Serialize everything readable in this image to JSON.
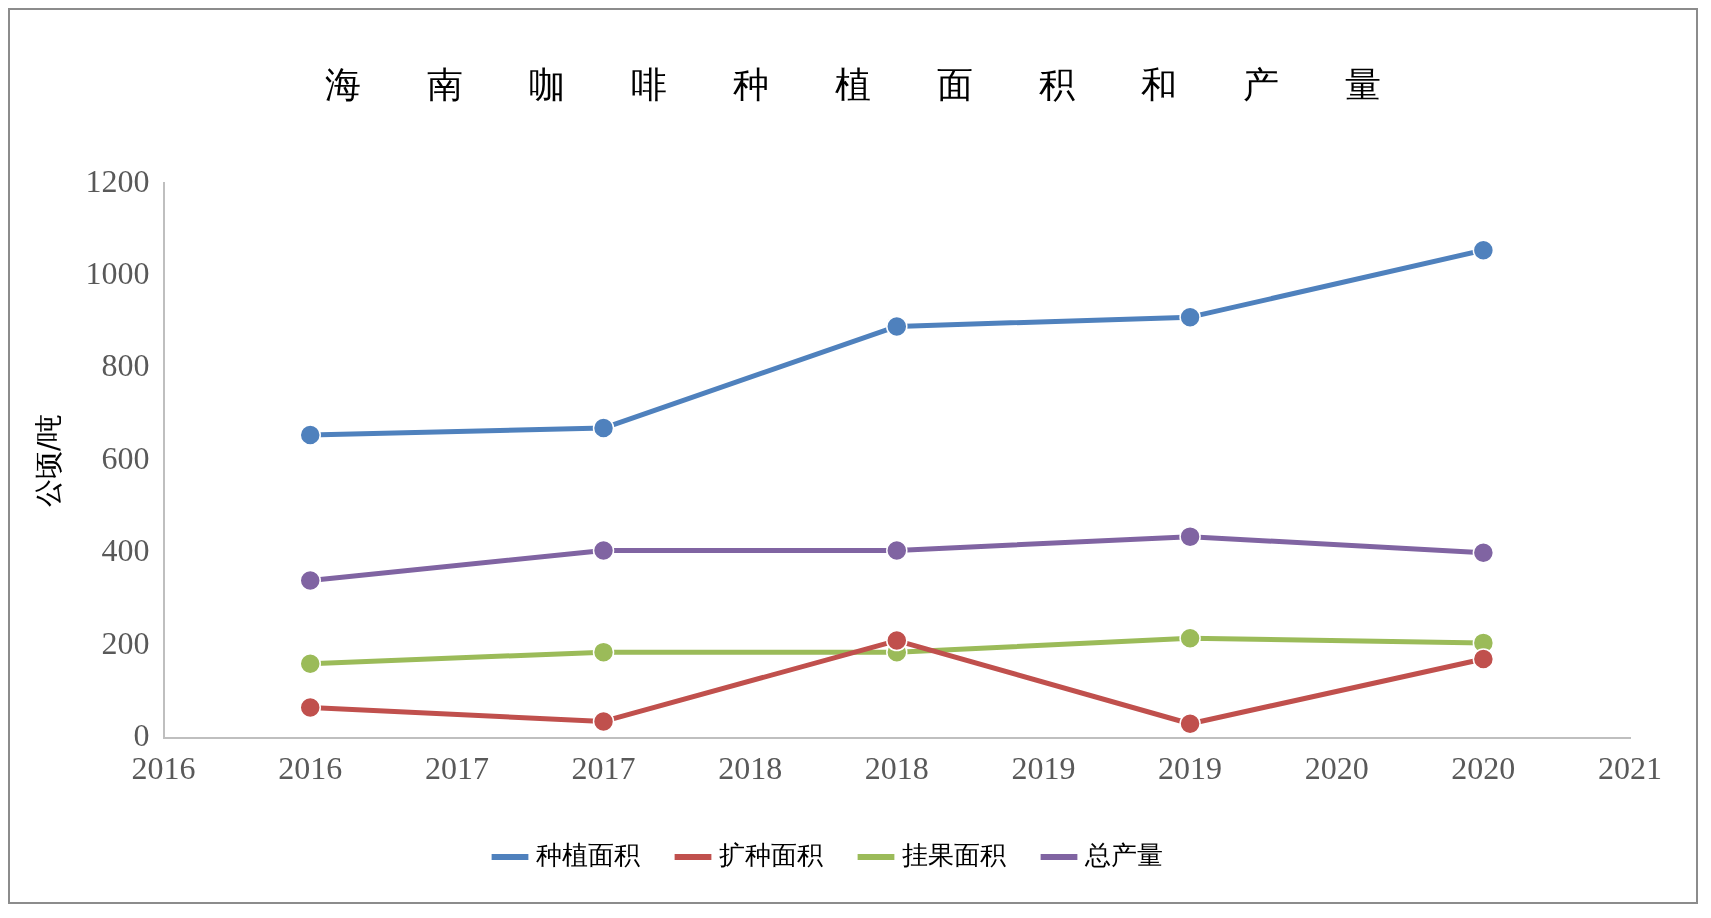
{
  "chart_data": {
    "type": "line",
    "title": "海南咖啡种植面积和产量",
    "ylabel": "公顷/吨",
    "x": [
      2016,
      2017,
      2018,
      2019,
      2020
    ],
    "xlim": [
      2015.5,
      2020.5
    ],
    "xticks": [
      {
        "value": 2015.5,
        "label": "2016"
      },
      2016,
      {
        "value": 2016.5,
        "label": "2017"
      },
      2017,
      {
        "value": 2017.5,
        "label": "2018"
      },
      2018,
      {
        "value": 2018.5,
        "label": "2019"
      },
      2019,
      {
        "value": 2019.5,
        "label": "2020"
      },
      2020,
      {
        "value": 2020.5,
        "label": "2021"
      }
    ],
    "ylim": [
      0,
      1200
    ],
    "yticks": [
      0,
      200,
      400,
      600,
      800,
      1000,
      1200
    ],
    "series": [
      {
        "name": "种植面积",
        "color": "#4f81bd",
        "values": [
          655,
          670,
          890,
          910,
          1055
        ]
      },
      {
        "name": "扩种面积",
        "color": "#c0504d",
        "values": [
          65,
          35,
          210,
          30,
          170
        ]
      },
      {
        "name": "挂果面积",
        "color": "#9bbb59",
        "values": [
          160,
          185,
          185,
          215,
          205
        ]
      },
      {
        "name": "总产量",
        "color": "#8064a2",
        "values": [
          340,
          405,
          405,
          435,
          400
        ]
      }
    ],
    "grid": false,
    "legend": "bottom",
    "marker": "circle",
    "line_style": "solid"
  }
}
